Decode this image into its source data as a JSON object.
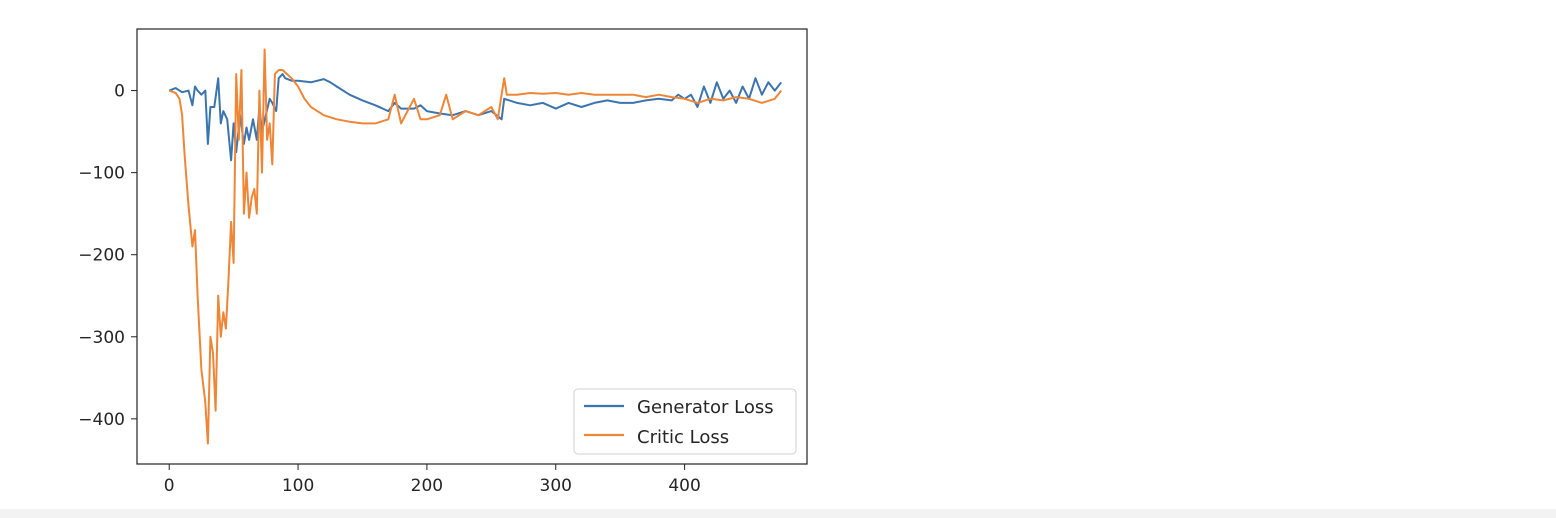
{
  "chart_data": {
    "type": "line",
    "title": "",
    "xlabel": "",
    "ylabel": "",
    "xlim": [
      -25,
      495
    ],
    "ylim": [
      -455,
      75
    ],
    "xticks": [
      0,
      100,
      200,
      300,
      400
    ],
    "yticks": [
      0,
      -100,
      -200,
      -300,
      -400
    ],
    "xtick_labels": [
      "0",
      "100",
      "200",
      "300",
      "400"
    ],
    "ytick_labels": [
      "0",
      "−100",
      "−200",
      "−300",
      "−400"
    ],
    "grid": false,
    "legend": {
      "position": "lower-right",
      "entries": [
        "Generator Loss",
        "Critic Loss"
      ]
    },
    "series": [
      {
        "name": "Generator Loss",
        "color": "#3b75af",
        "x": [
          0,
          5,
          10,
          15,
          18,
          20,
          22,
          25,
          28,
          30,
          32,
          35,
          38,
          40,
          42,
          45,
          48,
          50,
          52,
          55,
          58,
          60,
          62,
          65,
          68,
          70,
          72,
          75,
          78,
          80,
          83,
          85,
          88,
          90,
          95,
          100,
          110,
          120,
          125,
          130,
          140,
          150,
          160,
          170,
          175,
          180,
          190,
          195,
          200,
          210,
          220,
          230,
          240,
          250,
          258,
          260,
          270,
          280,
          290,
          300,
          310,
          320,
          330,
          340,
          350,
          360,
          370,
          380,
          390,
          395,
          400,
          405,
          410,
          415,
          420,
          425,
          430,
          435,
          440,
          445,
          450,
          455,
          460,
          465,
          470,
          475
        ],
        "y": [
          0,
          3,
          -2,
          0,
          -18,
          5,
          0,
          -5,
          0,
          -65,
          -20,
          -20,
          15,
          -40,
          -25,
          -35,
          -85,
          -40,
          -75,
          -30,
          -65,
          -45,
          -60,
          -35,
          -60,
          -20,
          -50,
          -30,
          -10,
          -15,
          -25,
          15,
          20,
          15,
          12,
          12,
          10,
          14,
          10,
          5,
          -5,
          -12,
          -18,
          -25,
          -15,
          -22,
          -22,
          -18,
          -25,
          -28,
          -30,
          -25,
          -30,
          -25,
          -35,
          -10,
          -15,
          -18,
          -15,
          -22,
          -15,
          -20,
          -15,
          -12,
          -15,
          -15,
          -12,
          -10,
          -12,
          -5,
          -10,
          -5,
          -20,
          5,
          -15,
          10,
          -10,
          0,
          -15,
          5,
          -10,
          15,
          -5,
          10,
          0,
          10
        ]
      },
      {
        "name": "Critic Loss",
        "color": "#ef8636",
        "x": [
          0,
          5,
          8,
          10,
          12,
          15,
          18,
          20,
          22,
          25,
          28,
          30,
          32,
          34,
          36,
          38,
          40,
          42,
          44,
          46,
          48,
          50,
          52,
          54,
          56,
          58,
          60,
          62,
          64,
          66,
          68,
          70,
          72,
          74,
          76,
          78,
          80,
          82,
          85,
          88,
          90,
          95,
          100,
          105,
          110,
          120,
          130,
          140,
          150,
          160,
          170,
          175,
          180,
          190,
          195,
          200,
          210,
          215,
          220,
          230,
          240,
          250,
          255,
          258,
          260,
          262,
          270,
          280,
          290,
          300,
          310,
          320,
          330,
          340,
          350,
          360,
          370,
          380,
          390,
          400,
          410,
          420,
          430,
          440,
          450,
          460,
          470,
          475
        ],
        "y": [
          0,
          -3,
          -10,
          -30,
          -80,
          -140,
          -190,
          -170,
          -250,
          -340,
          -380,
          -430,
          -300,
          -320,
          -390,
          -250,
          -300,
          -270,
          -290,
          -230,
          -160,
          -210,
          20,
          -60,
          25,
          -150,
          -100,
          -155,
          -130,
          -120,
          -150,
          0,
          -100,
          50,
          -60,
          -40,
          -90,
          20,
          25,
          25,
          22,
          15,
          5,
          -10,
          -20,
          -30,
          -35,
          -38,
          -40,
          -40,
          -35,
          -5,
          -40,
          -10,
          -35,
          -35,
          -30,
          -5,
          -35,
          -25,
          -30,
          -20,
          -35,
          -5,
          15,
          -5,
          -5,
          -3,
          -4,
          -3,
          -5,
          -3,
          -5,
          -5,
          -5,
          -5,
          -8,
          -5,
          -8,
          -10,
          -15,
          -10,
          -12,
          -8,
          -10,
          -15,
          -10,
          0
        ]
      }
    ]
  }
}
